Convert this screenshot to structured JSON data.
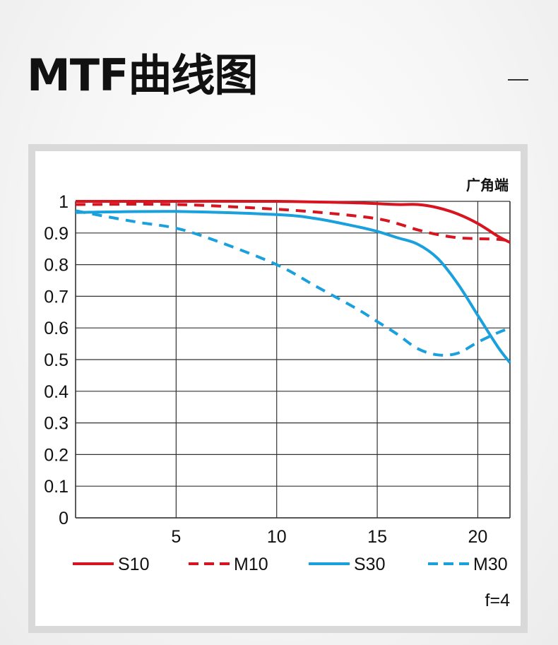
{
  "page": {
    "title": "MTF曲线图"
  },
  "colors": {
    "sagittal_10": "#d7141f",
    "meridional_10": "#d7141f",
    "sagittal_30": "#1aa0dc",
    "meridional_30": "#1aa0dc",
    "grid": "#333333",
    "text": "#111111"
  },
  "chart_data": {
    "type": "line",
    "corner_label": "广角端",
    "aperture_label": "f=4",
    "xlim": [
      0,
      21.6
    ],
    "ylim": [
      0,
      1
    ],
    "xticks": [
      5,
      10,
      15,
      20
    ],
    "yticks": [
      0,
      0.1,
      0.2,
      0.3,
      0.4,
      0.5,
      0.6,
      0.7,
      0.8,
      0.9,
      1
    ],
    "ytick_labels": [
      "0",
      "0.1",
      "0.2",
      "0.3",
      "0.4",
      "0.5",
      "0.6",
      "0.7",
      "0.8",
      "0.9",
      "1"
    ],
    "xtick_labels": [
      "5",
      "10",
      "15",
      "20"
    ],
    "grid": true,
    "legend_position": "bottom",
    "series": [
      {
        "name": "S10",
        "color_key": "sagittal_10",
        "dashed": false,
        "x": [
          0,
          5,
          10,
          14,
          16,
          17,
          18,
          19,
          20,
          21,
          21.6
        ],
        "y": [
          1,
          1,
          1,
          0.995,
          0.99,
          0.99,
          0.98,
          0.96,
          0.93,
          0.89,
          0.87
        ]
      },
      {
        "name": "M10",
        "color_key": "meridional_10",
        "dashed": true,
        "x": [
          0,
          5,
          10,
          13,
          15,
          16,
          17,
          18,
          19,
          20,
          21,
          21.6
        ],
        "y": [
          0.99,
          0.99,
          0.975,
          0.96,
          0.945,
          0.93,
          0.91,
          0.895,
          0.885,
          0.882,
          0.88,
          0.875
        ]
      },
      {
        "name": "S30",
        "color_key": "sagittal_30",
        "dashed": false,
        "x": [
          0,
          5,
          10,
          12,
          14,
          15,
          16,
          17,
          18,
          19,
          20,
          21,
          21.6
        ],
        "y": [
          0.965,
          0.968,
          0.958,
          0.945,
          0.92,
          0.905,
          0.885,
          0.865,
          0.82,
          0.74,
          0.64,
          0.54,
          0.49
        ]
      },
      {
        "name": "M30",
        "color_key": "meridional_30",
        "dashed": true,
        "x": [
          0,
          3,
          5,
          7,
          10,
          12,
          14,
          15,
          16,
          17,
          18,
          19,
          20,
          21,
          21.6
        ],
        "y": [
          0.97,
          0.935,
          0.915,
          0.875,
          0.8,
          0.73,
          0.66,
          0.62,
          0.58,
          0.535,
          0.515,
          0.52,
          0.555,
          0.585,
          0.6
        ]
      }
    ]
  }
}
